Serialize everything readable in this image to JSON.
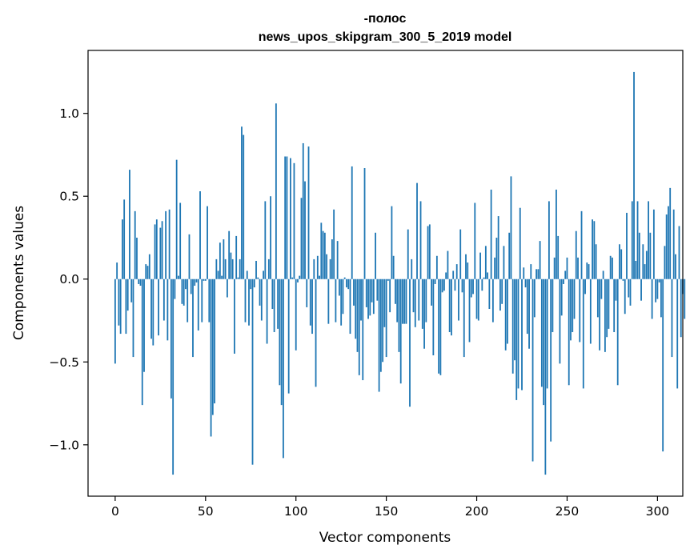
{
  "chart_data": {
    "type": "bar",
    "title": "-полос",
    "subtitle": "news_upos_skipgram_300_5_2019 model",
    "xlabel": "Vector components",
    "ylabel": "Components values",
    "xlim": [
      -15,
      314
    ],
    "ylim": [
      -1.31,
      1.38
    ],
    "xticks": [
      0,
      50,
      100,
      150,
      200,
      250,
      300
    ],
    "xtick_labels": [
      "0",
      "50",
      "100",
      "150",
      "200",
      "250",
      "300"
    ],
    "yticks": [
      -1.0,
      -0.5,
      0.0,
      0.5,
      1.0
    ],
    "ytick_labels": [
      "−1.0",
      "−0.5",
      "0.0",
      "0.5",
      "1.0"
    ],
    "bar_color": "#1f77b4",
    "values": [
      -0.51,
      0.1,
      -0.28,
      -0.33,
      0.36,
      0.48,
      -0.33,
      -0.19,
      0.66,
      -0.14,
      -0.47,
      0.41,
      0.25,
      -0.03,
      -0.04,
      -0.76,
      -0.56,
      0.09,
      0.08,
      0.15,
      -0.36,
      -0.4,
      0.33,
      0.36,
      -0.34,
      0.31,
      0.35,
      -0.25,
      0.41,
      -0.37,
      0.42,
      -0.72,
      -1.18,
      -0.12,
      0.72,
      0.02,
      0.46,
      -0.15,
      -0.16,
      -0.06,
      -0.26,
      0.27,
      -0.09,
      -0.47,
      -0.04,
      -0.02,
      -0.31,
      0.53,
      -0.26,
      -0.01,
      -0.01,
      0.44,
      -0.26,
      -0.95,
      -0.82,
      -0.75,
      0.12,
      0.05,
      0.22,
      0.02,
      0.24,
      0.12,
      -0.11,
      0.29,
      0.16,
      0.12,
      -0.45,
      0.26,
      0.01,
      0.12,
      0.92,
      0.87,
      -0.26,
      0.05,
      -0.28,
      -0.06,
      -1.12,
      -0.05,
      0.11,
      0.01,
      -0.16,
      -0.25,
      0.05,
      0.47,
      -0.39,
      0.12,
      0.5,
      -0.18,
      -0.32,
      1.06,
      -0.3,
      -0.64,
      -0.76,
      -1.08,
      0.74,
      0.74,
      -0.69,
      0.73,
      0.01,
      0.7,
      -0.43,
      -0.02,
      0.02,
      0.49,
      0.82,
      0.59,
      -0.17,
      0.8,
      -0.28,
      -0.33,
      0.12,
      -0.65,
      0.14,
      0.02,
      0.34,
      0.29,
      0.28,
      0.15,
      -0.27,
      0.12,
      0.24,
      0.42,
      -0.26,
      0.23,
      -0.1,
      -0.28,
      -0.21,
      0.01,
      -0.05,
      -0.06,
      -0.33,
      0.68,
      -0.16,
      -0.36,
      -0.44,
      -0.58,
      -0.25,
      -0.61,
      0.67,
      -0.17,
      -0.24,
      -0.22,
      -0.14,
      -0.21,
      0.28,
      -0.13,
      -0.68,
      -0.56,
      -0.5,
      -0.29,
      -0.47,
      -0.01,
      -0.2,
      0.44,
      0.14,
      -0.15,
      -0.26,
      -0.44,
      -0.63,
      -0.27,
      -0.27,
      -0.27,
      0.3,
      -0.77,
      0.12,
      -0.2,
      -0.29,
      0.58,
      -0.25,
      0.47,
      -0.3,
      -0.42,
      -0.26,
      0.32,
      0.33,
      -0.16,
      -0.46,
      -0.03,
      0.14,
      -0.57,
      -0.58,
      -0.08,
      -0.07,
      0.04,
      0.17,
      -0.32,
      -0.34,
      0.05,
      -0.07,
      0.09,
      -0.25,
      0.3,
      -0.08,
      -0.47,
      0.15,
      0.1,
      -0.38,
      -0.11,
      -0.09,
      0.46,
      -0.24,
      -0.25,
      0.16,
      -0.07,
      0.01,
      0.2,
      0.04,
      -0.18,
      0.54,
      -0.26,
      0.13,
      0.25,
      0.38,
      -0.19,
      -0.15,
      0.2,
      -0.43,
      -0.39,
      0.28,
      0.62,
      -0.57,
      -0.49,
      -0.73,
      -0.66,
      0.43,
      -0.67,
      0.07,
      -0.05,
      -0.33,
      -0.42,
      0.09,
      -1.1,
      -0.23,
      0.06,
      0.06,
      0.23,
      -0.65,
      -0.76,
      -1.18,
      -0.66,
      0.47,
      -0.98,
      -0.32,
      0.13,
      0.54,
      0.26,
      -0.51,
      -0.22,
      -0.03,
      0.05,
      0.13,
      -0.64,
      -0.37,
      -0.32,
      -0.24,
      0.29,
      0.13,
      -0.38,
      0.41,
      -0.66,
      -0.09,
      0.1,
      0.09,
      -0.39,
      0.36,
      0.35,
      0.21,
      -0.23,
      -0.43,
      -0.12,
      0.05,
      -0.44,
      -0.35,
      -0.3,
      0.14,
      0.13,
      -0.32,
      -0.13,
      -0.64,
      0.21,
      0.18,
      -0.01,
      -0.21,
      0.4,
      -0.11,
      -0.16,
      0.47,
      1.25,
      0.11,
      0.47,
      0.28,
      -0.13,
      0.21,
      0.09,
      0.17,
      0.47,
      0.28,
      -0.24,
      0.42,
      -0.14,
      -0.12,
      -0.02,
      -0.23,
      -1.04,
      0.2,
      0.39,
      0.44,
      0.55,
      -0.47,
      0.42,
      0.15,
      -0.66,
      0.32,
      -0.35,
      -0.09,
      -0.24
    ]
  }
}
